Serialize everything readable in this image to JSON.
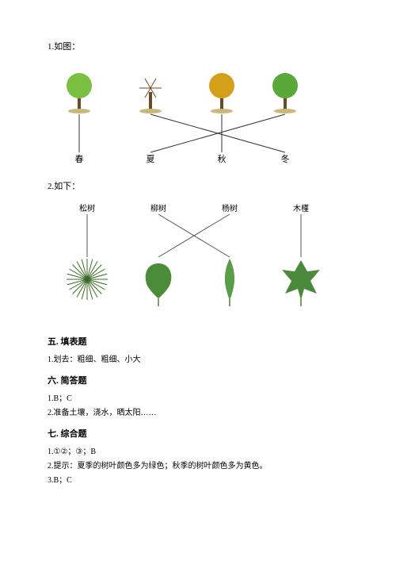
{
  "problem1": {
    "label": "1.如图：",
    "seasons": [
      "春",
      "夏",
      "秋",
      "冬"
    ],
    "tree_colors": [
      "#7bc043",
      "#8a7a5a",
      "#d4a017",
      "#5aa83a"
    ],
    "trunk_color": "#6b4a2a",
    "line_color": "#333333",
    "connections": [
      {
        "from": 0,
        "to": 0
      },
      {
        "from": 1,
        "to": 3
      },
      {
        "from": 2,
        "to": 2
      },
      {
        "from": 3,
        "to": 1
      }
    ]
  },
  "problem2": {
    "label": "2.如下：",
    "plants": [
      "松树",
      "柳树",
      "杨树",
      "木槿"
    ],
    "leaf_colors": [
      "#3a6b2a",
      "#4a8c3a",
      "#5a9c4a",
      "#4a8a3a"
    ],
    "line_color": "#555555",
    "connections": [
      {
        "from": 0,
        "to": 0
      },
      {
        "from": 1,
        "to": 2
      },
      {
        "from": 2,
        "to": 1
      },
      {
        "from": 3,
        "to": 3
      }
    ]
  },
  "sections": {
    "sec5": {
      "heading": "五. 填表题",
      "answers": [
        "1.划去：粗细、粗细、小大"
      ]
    },
    "sec6": {
      "heading": "六. 简答题",
      "answers": [
        "1.B；C",
        "2.准备土壤，浇水，晒太阳……"
      ]
    },
    "sec7": {
      "heading": "七. 综合题",
      "answers": [
        "1.①②；③；B",
        "2.提示：夏季的树叶颜色多为绿色；秋季的树叶颜色多为黄色。",
        "3.B；C"
      ]
    }
  }
}
